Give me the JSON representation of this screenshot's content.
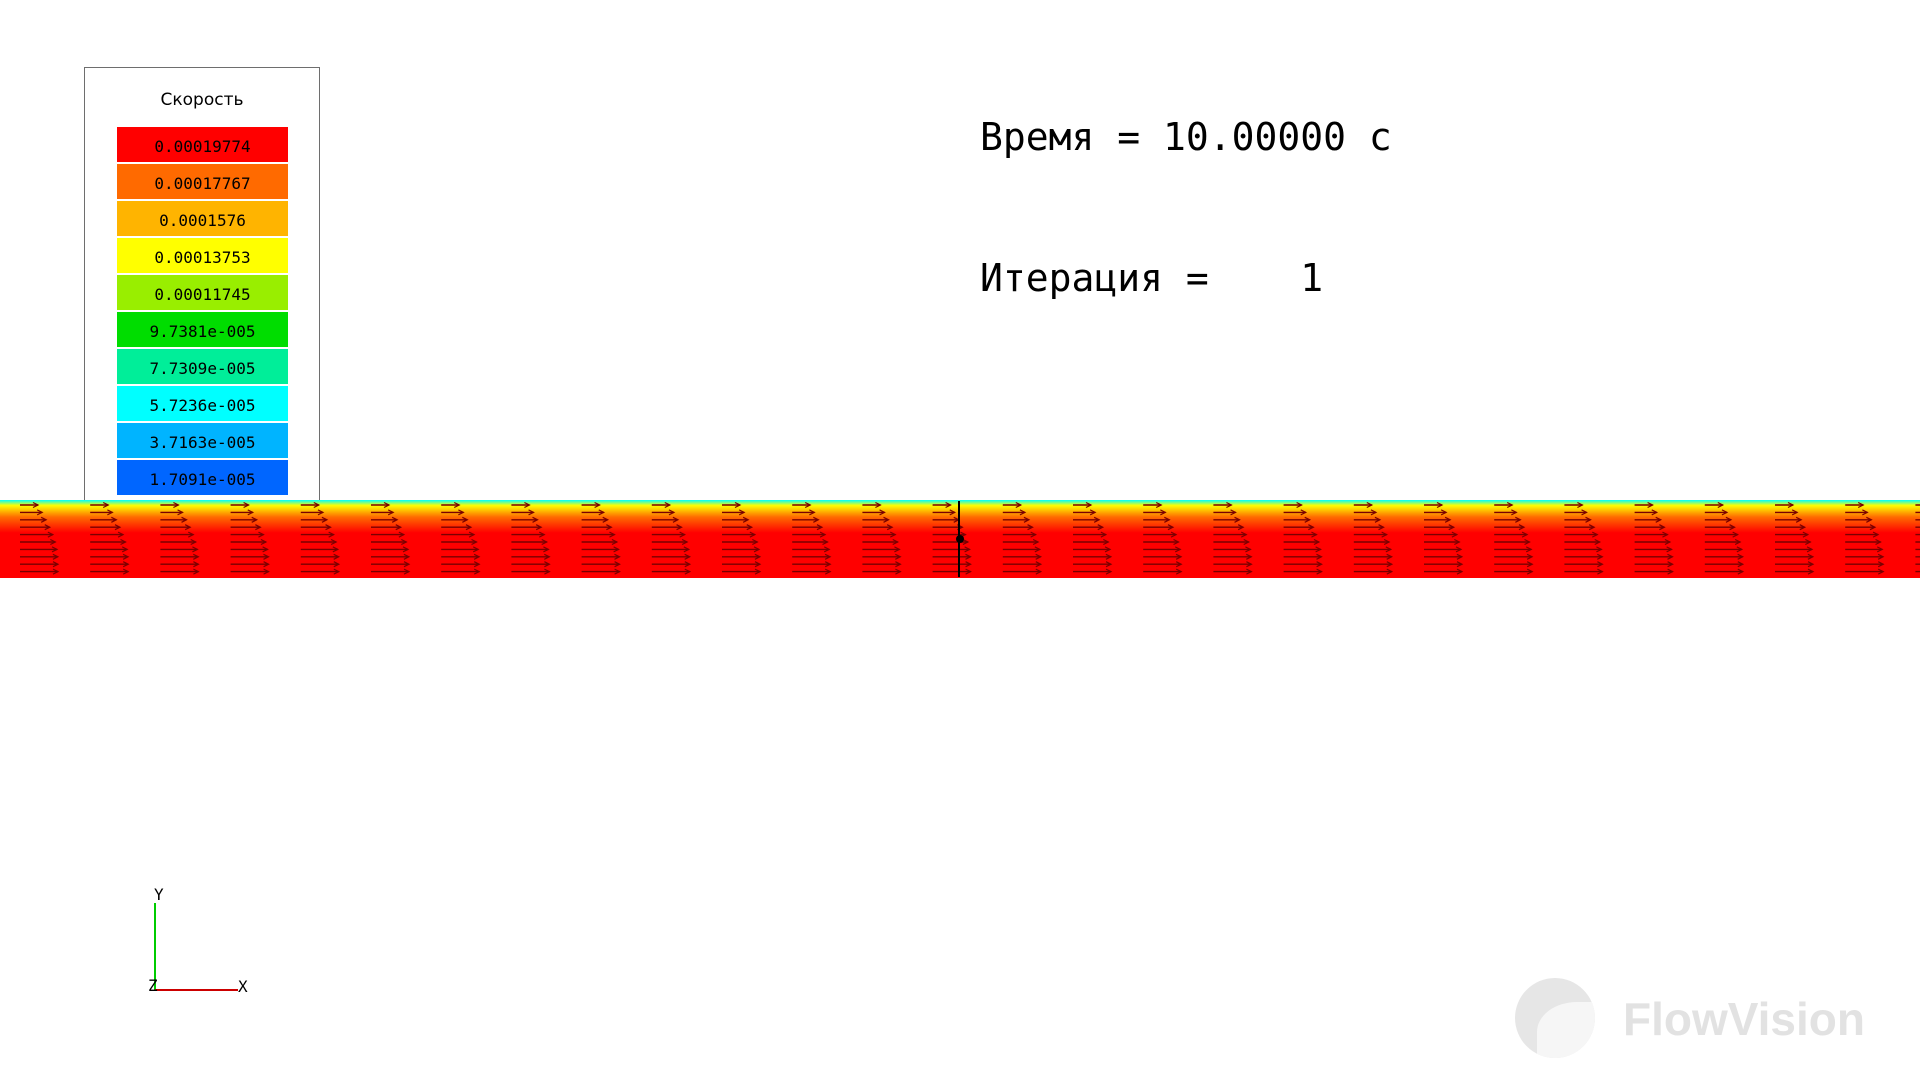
{
  "legend": {
    "title": "Скорость",
    "entries": [
      {
        "label": "0.00019774",
        "color": "#ff0000"
      },
      {
        "label": "0.00017767",
        "color": "#ff6a00"
      },
      {
        "label": "0.0001576",
        "color": "#ffb400"
      },
      {
        "label": "0.00013753",
        "color": "#ffff00"
      },
      {
        "label": "0.00011745",
        "color": "#99ee00"
      },
      {
        "label": "9.7381e-005",
        "color": "#00dd00"
      },
      {
        "label": "7.7309e-005",
        "color": "#00ee99"
      },
      {
        "label": "5.7236e-005",
        "color": "#00ffff"
      },
      {
        "label": "3.7163e-005",
        "color": "#00b4ff"
      },
      {
        "label": "1.7091e-005",
        "color": "#0066ff"
      }
    ]
  },
  "info": {
    "time_line": "Время = 10.00000 с",
    "iteration_line": "Итерация =    1"
  },
  "axes": {
    "y_label": "Y",
    "z_label": "Z",
    "x_label": "X",
    "y_color": "#00cc00",
    "x_color": "#cc0000"
  },
  "brand": {
    "text": "FlowVision"
  },
  "flow": {
    "gradient_colors": [
      "#00ffff",
      "#ffff00",
      "#ff6a00",
      "#ff0000"
    ],
    "arrow_color": "#7a0000"
  }
}
